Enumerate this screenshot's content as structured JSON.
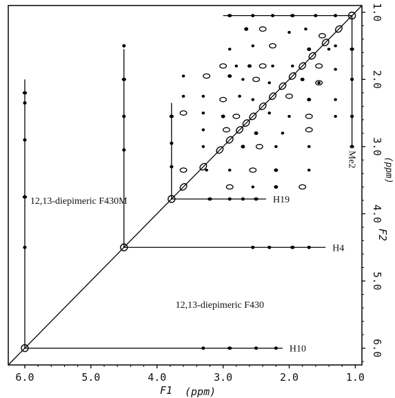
{
  "chart_data": {
    "type": "scatter",
    "subtype": "2D NMR COSY contour plot",
    "x_axis": {
      "label": "F1",
      "unit": "(ppm)",
      "range": [
        6.25,
        0.9
      ],
      "ticks": [
        6.0,
        5.0,
        4.0,
        3.0,
        2.0,
        1.0
      ],
      "tick_labels": [
        "6.0",
        "5.0",
        "4.0",
        "3.0",
        "2.0",
        "1.0"
      ]
    },
    "y_axis": {
      "label": "F2",
      "unit": "(ppm)",
      "position": "right",
      "range": [
        0.9,
        6.25
      ],
      "ticks": [
        1.0,
        2.0,
        3.0,
        4.0,
        5.0,
        6.0
      ],
      "tick_labels": [
        "1.0",
        "2.0",
        "3.0",
        "4.0",
        "5.0",
        "6.0"
      ]
    },
    "grid": false,
    "legend": "none",
    "diagonal": true,
    "diagonal_peaks": [
      1.05,
      1.25,
      1.45,
      1.65,
      1.8,
      1.95,
      2.1,
      2.25,
      2.4,
      2.55,
      2.65,
      2.75,
      2.9,
      3.05,
      3.3,
      3.6,
      3.78,
      4.5,
      6.0
    ],
    "cross_peak_traces": [
      {
        "label": "Me2",
        "peak": [
          1.05,
          1.05
        ],
        "h_to": 3.0,
        "v_to": 3.0
      },
      {
        "label": "H19",
        "peak": [
          3.78,
          3.78
        ],
        "h_to": 2.35,
        "v_to": 2.35
      },
      {
        "label": "H4",
        "peak": [
          4.5,
          4.5
        ],
        "h_to": 1.45,
        "v_to": 1.55
      },
      {
        "label": "H10",
        "peak": [
          6.0,
          6.0
        ],
        "h_to": 2.1,
        "v_to": 2.0
      }
    ],
    "trace_cross_peaks": [
      {
        "x": 2.9,
        "y": 1.05
      },
      {
        "x": 2.55,
        "y": 1.05
      },
      {
        "x": 2.25,
        "y": 1.05
      },
      {
        "x": 1.95,
        "y": 1.05
      },
      {
        "x": 1.6,
        "y": 1.05
      },
      {
        "x": 1.3,
        "y": 1.05
      },
      {
        "x": 3.2,
        "y": 3.78
      },
      {
        "x": 2.9,
        "y": 3.78
      },
      {
        "x": 2.7,
        "y": 3.78
      },
      {
        "x": 2.5,
        "y": 3.78
      },
      {
        "x": 2.55,
        "y": 4.5
      },
      {
        "x": 2.3,
        "y": 4.5
      },
      {
        "x": 1.95,
        "y": 4.5
      },
      {
        "x": 1.7,
        "y": 4.5
      },
      {
        "x": 3.3,
        "y": 6.0
      },
      {
        "x": 2.9,
        "y": 6.0
      },
      {
        "x": 2.5,
        "y": 6.0
      },
      {
        "x": 2.2,
        "y": 6.0
      },
      {
        "x": 6.0,
        "y": 2.2
      },
      {
        "x": 6.0,
        "y": 2.35
      },
      {
        "x": 6.0,
        "y": 2.9
      },
      {
        "x": 6.0,
        "y": 3.75
      },
      {
        "x": 6.0,
        "y": 4.5
      },
      {
        "x": 4.5,
        "y": 1.5
      },
      {
        "x": 4.5,
        "y": 2.0
      },
      {
        "x": 4.5,
        "y": 2.55
      },
      {
        "x": 4.5,
        "y": 3.05
      },
      {
        "x": 3.78,
        "y": 2.55
      },
      {
        "x": 3.78,
        "y": 2.95
      },
      {
        "x": 3.78,
        "y": 3.3
      },
      {
        "x": 1.05,
        "y": 1.55
      },
      {
        "x": 1.05,
        "y": 2.0
      },
      {
        "x": 1.05,
        "y": 2.55
      },
      {
        "x": 1.05,
        "y": 3.0
      }
    ],
    "off_diagonal_peaks": [
      {
        "x": 2.65,
        "y": 1.25
      },
      {
        "x": 2.4,
        "y": 1.25
      },
      {
        "x": 2.0,
        "y": 1.3
      },
      {
        "x": 1.75,
        "y": 1.25
      },
      {
        "x": 1.5,
        "y": 1.35
      },
      {
        "x": 2.9,
        "y": 1.55
      },
      {
        "x": 2.55,
        "y": 1.5
      },
      {
        "x": 2.25,
        "y": 1.5
      },
      {
        "x": 1.7,
        "y": 1.55
      },
      {
        "x": 1.3,
        "y": 1.5
      },
      {
        "x": 3.0,
        "y": 1.8
      },
      {
        "x": 2.8,
        "y": 1.8
      },
      {
        "x": 2.6,
        "y": 1.8
      },
      {
        "x": 2.4,
        "y": 1.8
      },
      {
        "x": 2.25,
        "y": 1.8
      },
      {
        "x": 1.95,
        "y": 1.8
      },
      {
        "x": 1.55,
        "y": 1.8
      },
      {
        "x": 1.3,
        "y": 1.85
      },
      {
        "x": 3.6,
        "y": 1.95
      },
      {
        "x": 3.25,
        "y": 1.95
      },
      {
        "x": 2.9,
        "y": 1.95
      },
      {
        "x": 2.7,
        "y": 2.0
      },
      {
        "x": 2.5,
        "y": 2.0
      },
      {
        "x": 2.3,
        "y": 2.05
      },
      {
        "x": 1.8,
        "y": 2.0
      },
      {
        "x": 1.55,
        "y": 2.05
      },
      {
        "x": 3.6,
        "y": 2.25
      },
      {
        "x": 3.3,
        "y": 2.25
      },
      {
        "x": 3.0,
        "y": 2.3
      },
      {
        "x": 2.75,
        "y": 2.25
      },
      {
        "x": 2.55,
        "y": 2.3
      },
      {
        "x": 2.0,
        "y": 2.25
      },
      {
        "x": 1.7,
        "y": 2.3
      },
      {
        "x": 1.3,
        "y": 2.3
      },
      {
        "x": 3.6,
        "y": 2.5
      },
      {
        "x": 3.3,
        "y": 2.5
      },
      {
        "x": 3.0,
        "y": 2.55
      },
      {
        "x": 2.8,
        "y": 2.55
      },
      {
        "x": 2.3,
        "y": 2.5
      },
      {
        "x": 2.0,
        "y": 2.55
      },
      {
        "x": 1.7,
        "y": 2.55
      },
      {
        "x": 1.3,
        "y": 2.55
      },
      {
        "x": 3.3,
        "y": 2.75
      },
      {
        "x": 2.95,
        "y": 2.75
      },
      {
        "x": 2.5,
        "y": 2.8
      },
      {
        "x": 2.1,
        "y": 2.8
      },
      {
        "x": 1.7,
        "y": 2.75
      },
      {
        "x": 3.3,
        "y": 3.0
      },
      {
        "x": 2.7,
        "y": 3.0
      },
      {
        "x": 2.45,
        "y": 3.0
      },
      {
        "x": 2.2,
        "y": 3.0
      },
      {
        "x": 1.7,
        "y": 3.0
      },
      {
        "x": 3.6,
        "y": 3.35
      },
      {
        "x": 3.25,
        "y": 3.35
      },
      {
        "x": 2.9,
        "y": 3.35
      },
      {
        "x": 2.55,
        "y": 3.35
      },
      {
        "x": 2.2,
        "y": 3.35
      },
      {
        "x": 1.7,
        "y": 3.35
      },
      {
        "x": 2.9,
        "y": 3.6
      },
      {
        "x": 2.55,
        "y": 3.6
      },
      {
        "x": 2.2,
        "y": 3.6
      },
      {
        "x": 1.8,
        "y": 3.6
      },
      {
        "x": 1.55,
        "y": 2.05
      },
      {
        "x": 1.4,
        "y": 1.55
      }
    ],
    "annotations": [
      {
        "text": "12,13-diepimeric F430M",
        "x": 4.45,
        "y": 3.85
      },
      {
        "text": "12,13-diepimeric F430",
        "x": 3.05,
        "y": 5.4
      }
    ]
  }
}
